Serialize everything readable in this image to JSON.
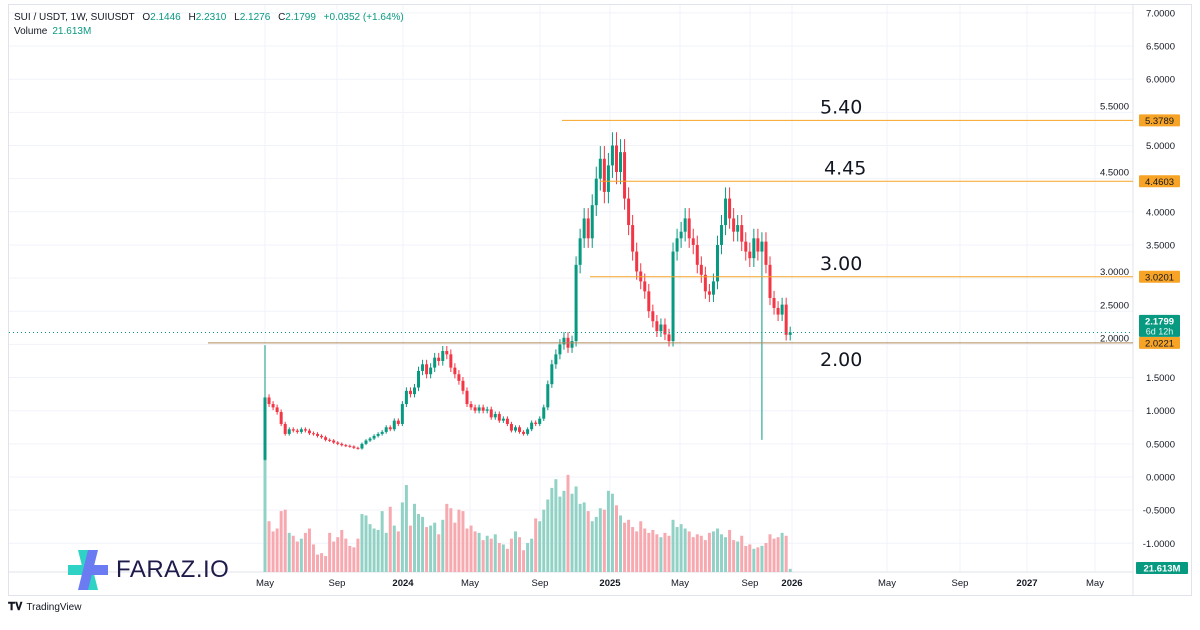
{
  "header": {
    "symbol": "SUI / USDT, 1W, SUIUSDT",
    "o_label": "O",
    "o": "2.1446",
    "h_label": "H",
    "h": "2.2310",
    "l_label": "L",
    "l": "2.1276",
    "c_label": "C",
    "c": "2.1799",
    "change": "+0.0352 (+1.64%)",
    "volume_label": "Volume",
    "volume": "21.613M"
  },
  "chart_data": {
    "type": "candlestick",
    "interval": "1W",
    "start_week": "2023-05",
    "first_open": 0.26,
    "first_high": 1.99,
    "ylim": [
      -1.25,
      7.0
    ],
    "y_ticks": [
      "7.0000",
      "6.5000",
      "6.0000",
      "5.5000",
      "5.0000",
      "4.5000",
      "4.0000",
      "3.5000",
      "3.0000",
      "2.5000",
      "2.0000",
      "1.5000",
      "1.0000",
      "0.5000",
      "0.0000",
      "-0.5000",
      "-1.0000"
    ],
    "x_ticks": [
      "May",
      "Sep",
      "2024",
      "May",
      "Sep",
      "2025",
      "May",
      "Sep",
      "2026",
      "May",
      "Sep",
      "2027",
      "May"
    ],
    "closes": [
      1.2,
      1.1,
      1.05,
      0.98,
      0.8,
      0.65,
      0.72,
      0.7,
      0.68,
      0.72,
      0.7,
      0.66,
      0.65,
      0.62,
      0.6,
      0.56,
      0.55,
      0.52,
      0.5,
      0.48,
      0.47,
      0.46,
      0.44,
      0.43,
      0.5,
      0.55,
      0.58,
      0.62,
      0.65,
      0.68,
      0.75,
      0.72,
      0.85,
      0.8,
      1.1,
      1.3,
      1.25,
      1.35,
      1.6,
      1.7,
      1.55,
      1.65,
      1.8,
      1.75,
      1.9,
      1.85,
      1.65,
      1.55,
      1.45,
      1.3,
      1.1,
      1.05,
      1.0,
      1.05,
      1.0,
      1.02,
      0.9,
      0.95,
      0.85,
      0.88,
      0.8,
      0.7,
      0.75,
      0.68,
      0.65,
      0.72,
      0.82,
      0.8,
      0.88,
      1.05,
      1.4,
      1.7,
      1.85,
      2.0,
      2.1,
      1.95,
      2.05,
      3.2,
      3.6,
      3.9,
      3.6,
      4.1,
      4.5,
      4.8,
      4.3,
      4.7,
      5.0,
      4.6,
      4.9,
      4.2,
      3.8,
      3.4,
      3.1,
      2.95,
      2.8,
      2.5,
      2.35,
      2.2,
      2.3,
      2.15,
      2.05,
      3.4,
      3.6,
      3.7,
      3.9,
      3.6,
      3.5,
      3.2,
      3.05,
      2.8,
      2.75,
      2.95,
      3.5,
      3.8,
      4.2,
      3.9,
      3.7,
      3.8,
      3.55,
      3.4,
      3.3,
      3.6,
      3.4,
      3.55,
      3.2,
      2.7,
      2.55,
      2.45,
      2.6,
      2.1446,
      2.1799
    ],
    "volumes_m": [
      900,
      350,
      280,
      300,
      420,
      430,
      270,
      250,
      210,
      230,
      270,
      300,
      190,
      120,
      130,
      110,
      270,
      210,
      240,
      290,
      230,
      180,
      170,
      230,
      400,
      390,
      330,
      300,
      290,
      420,
      270,
      450,
      320,
      280,
      480,
      600,
      320,
      470,
      400,
      380,
      310,
      320,
      340,
      260,
      360,
      470,
      440,
      340,
      430,
      420,
      300,
      320,
      280,
      270,
      220,
      250,
      230,
      260,
      200,
      190,
      160,
      230,
      280,
      240,
      150,
      200,
      230,
      370,
      350,
      430,
      500,
      580,
      640,
      520,
      560,
      670,
      540,
      590,
      470,
      480,
      420,
      350,
      380,
      440,
      430,
      560,
      540,
      460,
      390,
      340,
      360,
      310,
      280,
      350,
      300,
      270,
      290,
      260,
      240,
      270,
      250,
      360,
      310,
      330,
      300,
      280,
      240,
      260,
      250,
      220,
      270,
      280,
      300,
      260,
      240,
      290,
      220,
      210,
      250,
      180,
      190,
      160,
      170,
      180,
      200,
      260,
      230,
      240,
      270,
      250,
      21.613
    ],
    "notable_low": 0.56,
    "levels": [
      {
        "price": 5.3789,
        "axis_label": "5.3789",
        "annotation": "5.40"
      },
      {
        "price": 4.4603,
        "axis_label": "4.4603",
        "annotation": "4.45"
      },
      {
        "price": 3.0201,
        "axis_label": "3.0201",
        "annotation": "3.00"
      },
      {
        "price": 2.0221,
        "axis_label": "2.0221",
        "annotation": "2.00"
      }
    ],
    "last_price": {
      "value": 2.1799,
      "label": "2.1799",
      "countdown": "6d 12h"
    },
    "volume_axis_label": "21.613M",
    "colors": {
      "up": "#089981",
      "down": "#f23645",
      "vol_up": "#92d2c6",
      "vol_down": "#f7a9b0",
      "level": "#f7a325",
      "grid": "#f0f3fa"
    }
  },
  "branding": {
    "logo_text": "FARAZ.IO",
    "tv_text": "TradingView"
  }
}
